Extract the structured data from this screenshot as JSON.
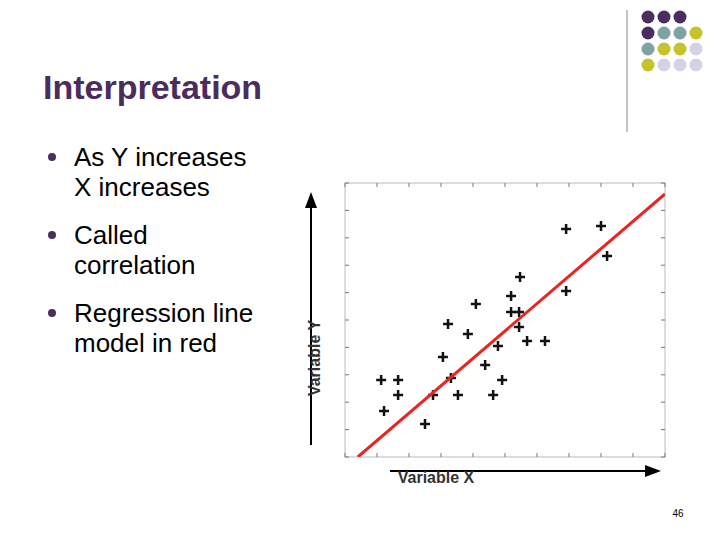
{
  "slide": {
    "title": "Interpretation",
    "bullets": [
      [
        "As Y increases",
        "X increases"
      ],
      [
        "Called",
        "correlation"
      ],
      [
        "Regression line",
        "model in red"
      ]
    ],
    "page_number": "46"
  },
  "chart_data": {
    "type": "scatter",
    "marker": "plus",
    "color": "#111111",
    "x_label": "Variable X",
    "y_label": "Variable Y",
    "x": [
      6.91,
      8.0,
      8.19,
      6.91,
      5.47,
      5.19,
      4.09,
      5.19,
      5.44,
      3.22,
      3.84,
      5.44,
      4.78,
      5.69,
      6.25,
      3.06,
      4.38,
      1.13,
      1.66,
      3.31,
      4.91,
      1.66,
      2.75,
      3.53,
      4.63,
      1.22,
      2.5
    ],
    "values": [
      8.32,
      8.43,
      7.34,
      6.06,
      6.57,
      5.88,
      5.58,
      5.29,
      5.29,
      4.85,
      4.49,
      4.74,
      4.05,
      4.23,
      4.23,
      3.65,
      3.36,
      2.81,
      2.81,
      2.88,
      2.81,
      2.26,
      2.26,
      2.26,
      2.26,
      1.68,
      1.2
    ],
    "xlim": [
      0,
      10
    ],
    "ylim": [
      0,
      10
    ],
    "xticks": [
      0,
      1,
      2,
      3,
      4,
      5,
      6,
      7,
      8,
      9,
      10
    ],
    "yticks": [
      0,
      1,
      2,
      3,
      4,
      5,
      6,
      7,
      8,
      9,
      10
    ],
    "tick_labels": false,
    "grid": false,
    "regression": {
      "type": "line",
      "color": "#e8251f",
      "x": [
        0.4,
        10
      ],
      "values": [
        0,
        9.6
      ]
    }
  }
}
